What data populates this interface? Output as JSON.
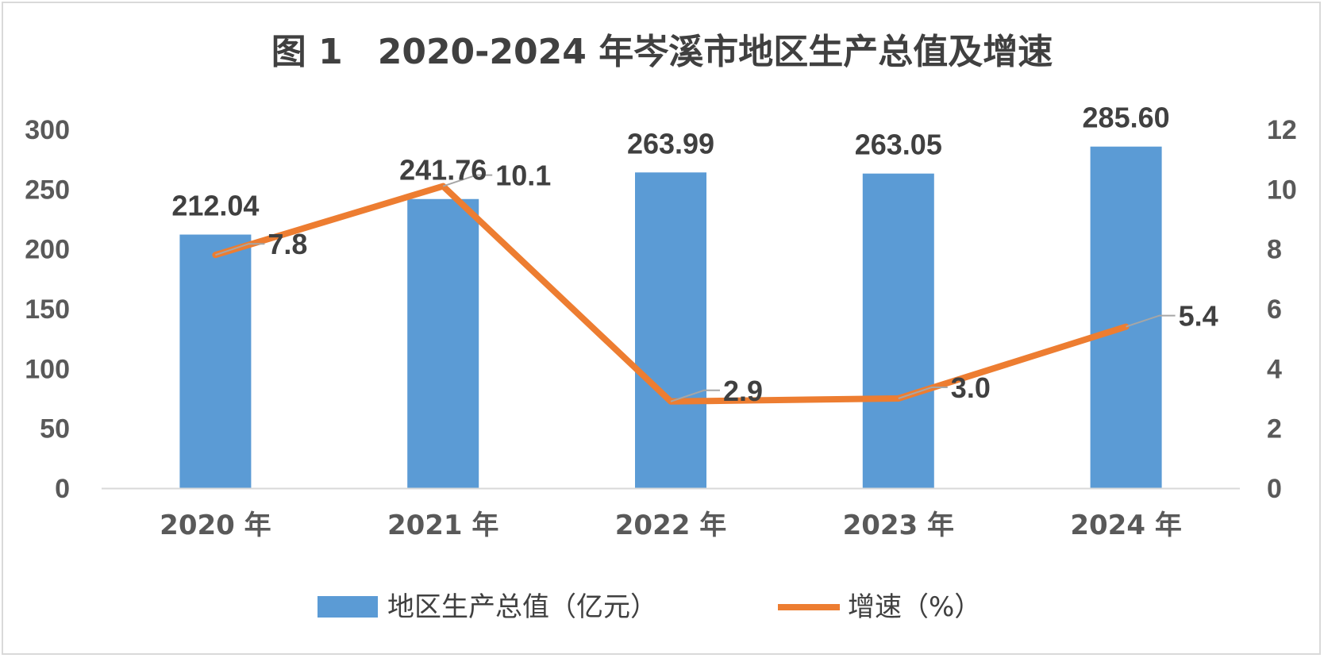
{
  "chart_data": {
    "type": "bar",
    "title": "图 1　2020-2024 年岑溪市地区生产总值及增速",
    "categories": [
      "2020 年",
      "2021 年",
      "2022 年",
      "2023 年",
      "2024 年"
    ],
    "series": [
      {
        "name": "地区生产总值（亿元）",
        "type": "bar",
        "axis": "left",
        "color": "#5b9bd5",
        "values": [
          212.04,
          241.76,
          263.99,
          263.05,
          285.6
        ],
        "labels": [
          "212.04",
          "241.76",
          "263.99",
          "263.05",
          "285.60"
        ]
      },
      {
        "name": "增速（%）",
        "type": "line",
        "axis": "right",
        "color": "#ed7d31",
        "values": [
          7.8,
          10.1,
          2.9,
          3.0,
          5.4
        ],
        "labels": [
          "7.8",
          "10.1",
          "2.9",
          "3.0",
          "5.4"
        ]
      }
    ],
    "y_left": {
      "min": 0,
      "max": 300,
      "ticks": [
        "0",
        "50",
        "100",
        "150",
        "200",
        "250",
        "300"
      ]
    },
    "y_right": {
      "min": 0,
      "max": 12,
      "ticks": [
        "0",
        "2",
        "4",
        "6",
        "8",
        "10",
        "12"
      ]
    },
    "grid": false,
    "legend_position": "bottom"
  }
}
